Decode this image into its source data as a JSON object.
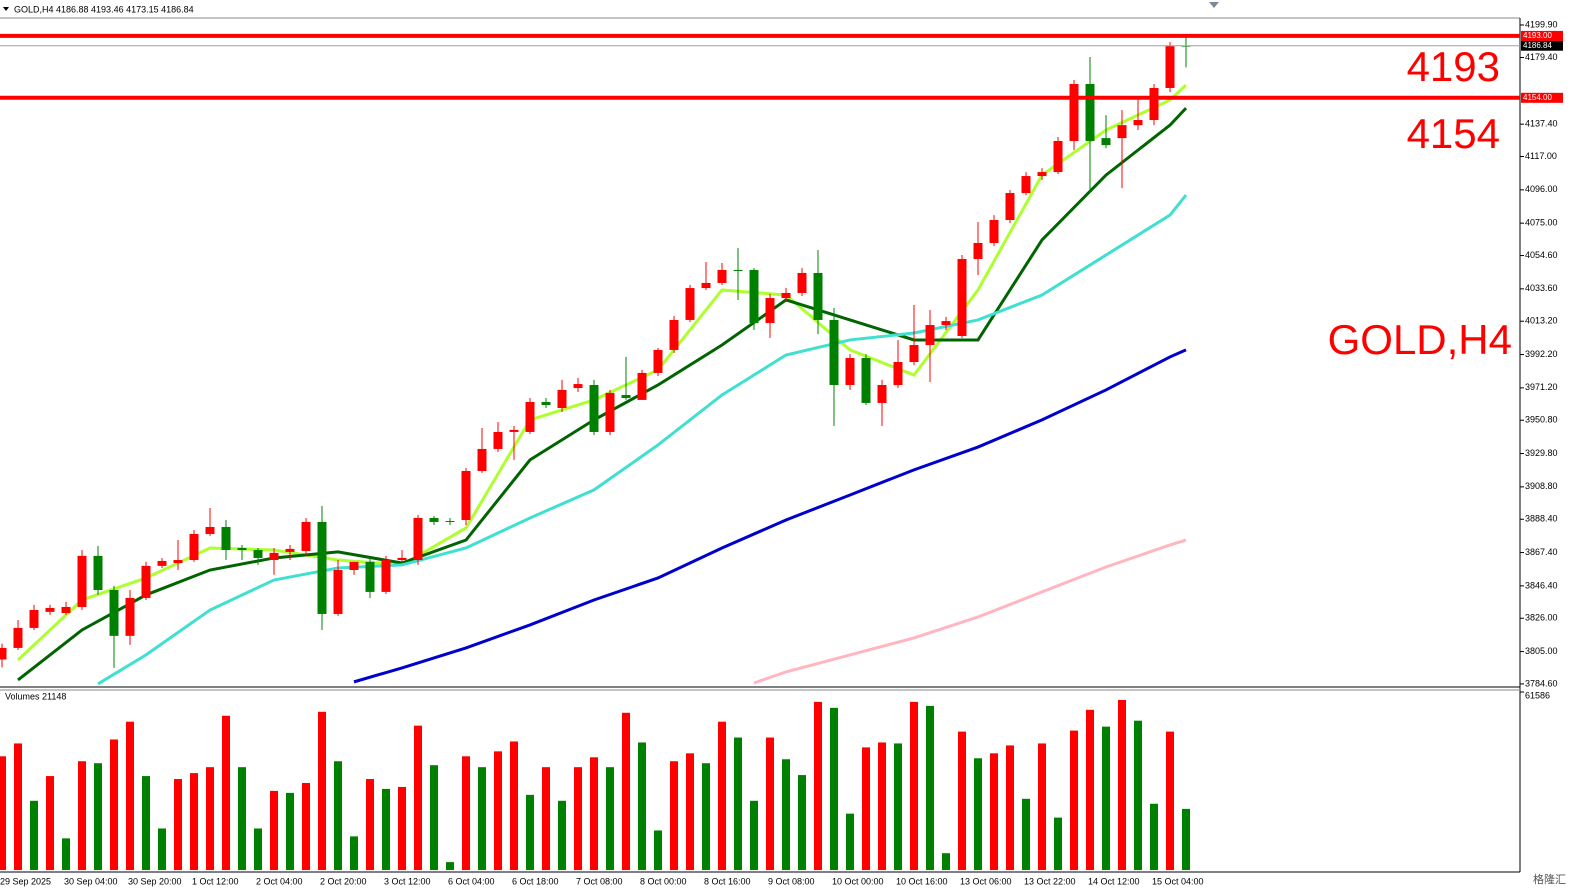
{
  "chart_data": [
    {
      "type": "candlestick",
      "title": "GOLD,H4  4186.88 4193.46 4173.15 4186.84",
      "categories": [
        "29 Sep 2025",
        null,
        null,
        null,
        "30 Sep 04:00",
        null,
        null,
        null,
        "30 Sep 20:00",
        null,
        null,
        null,
        "1 Oct 12:00",
        null,
        null,
        null,
        "2 Oct 04:00",
        null,
        null,
        null,
        "2 Oct 20:00",
        null,
        null,
        null,
        "3 Oct 12:00",
        null,
        null,
        null,
        "6 Oct 04:00",
        null,
        null,
        null,
        "6 Oct 18:00",
        null,
        null,
        null,
        "7 Oct 08:00",
        null,
        null,
        null,
        "8 Oct 00:00",
        null,
        null,
        null,
        "8 Oct 16:00",
        null,
        null,
        null,
        "9 Oct 08:00",
        null,
        null,
        null,
        "10 Oct 00:00",
        null,
        null,
        null,
        "10 Oct 16:00",
        null,
        null,
        null,
        "13 Oct 06:00",
        null,
        null,
        null,
        "13 Oct 22:00",
        null,
        null,
        null,
        "14 Oct 12:00",
        null,
        null,
        null,
        "15 Oct 04:00",
        null,
        null
      ],
      "open": [
        3800.0,
        3807.3,
        3819.9,
        3830.0,
        3829.3,
        3833.1,
        3865.3,
        3843.8,
        3814.9,
        3838.8,
        3859.0,
        3860.8,
        3862.7,
        3879.1,
        3883.5,
        3870.3,
        3869.0,
        3862.7,
        3867.8,
        3868.4,
        3886.7,
        3828.7,
        3856.4,
        3861.5,
        3842.6,
        3862.7,
        3862.7,
        3889.2,
        3887.3,
        3887.9,
        3918.8,
        3932.7,
        3943.4,
        3943.4,
        3962.3,
        3958.5,
        3971.1,
        3973.0,
        3943.4,
        3966.7,
        3963.6,
        3980.6,
        3995.1,
        4014.0,
        4034.1,
        4037.3,
        4045.5,
        4045.5,
        4012.1,
        4027.8,
        4031.0,
        4043.6,
        4014.0,
        3973.0,
        3990.0,
        3961.7,
        3973.0,
        3987.5,
        3998.2,
        4010.8,
        4003.9,
        4052.4,
        4062.5,
        4077.0,
        4094.0,
        4104.7,
        4107.2,
        4126.8,
        4162.7,
        4128.6,
        4128.6,
        4136.8,
        4140.0,
        4160.2,
        4186.88
      ],
      "high": [
        3810.0,
        3824.9,
        3834.4,
        3834.4,
        3836.3,
        3869.0,
        3871.6,
        3846.4,
        3843.8,
        3861.5,
        3864.0,
        3875.3,
        3881.6,
        3895.5,
        3887.9,
        3872.2,
        3870.3,
        3870.3,
        3872.2,
        3889.2,
        3896.8,
        3862.7,
        3861.5,
        3864.0,
        3865.3,
        3869.0,
        3891.1,
        3890.5,
        3889.2,
        3920.7,
        3945.9,
        3949.7,
        3947.2,
        3964.8,
        3964.8,
        3976.2,
        3977.4,
        3976.2,
        3969.9,
        3990.7,
        3982.5,
        3996.3,
        4016.5,
        4036.0,
        4050.5,
        4049.9,
        4059.3,
        4046.7,
        4030.4,
        4034.1,
        4046.7,
        4058.1,
        4021.5,
        3992.5,
        3992.5,
        3976.2,
        4001.4,
        4023.4,
        4020.3,
        4015.9,
        4054.9,
        4075.7,
        4080.1,
        4095.9,
        4107.2,
        4109.7,
        4129.3,
        4165.2,
        4179.7,
        4143.1,
        4146.3,
        4153.9,
        4162.7,
        4189.1,
        4193.46
      ],
      "low": [
        3795.0,
        3806.0,
        3818.6,
        3828.1,
        3828.1,
        3831.2,
        3840.7,
        3794.7,
        3809.2,
        3837.5,
        3857.7,
        3856.4,
        3861.5,
        3877.9,
        3862.7,
        3862.7,
        3859.6,
        3853.3,
        3862.7,
        3865.9,
        3818.6,
        3827.5,
        3853.3,
        3838.8,
        3841.3,
        3861.5,
        3859.6,
        3884.8,
        3884.8,
        3884.8,
        3917.6,
        3930.8,
        3925.8,
        3942.1,
        3958.5,
        3956.0,
        3968.6,
        3941.5,
        3941.5,
        3963.6,
        3963.6,
        3978.7,
        3993.2,
        4012.7,
        4032.9,
        4036.0,
        4026.6,
        4007.7,
        4002.6,
        4025.3,
        4029.1,
        4005.1,
        3947.2,
        3969.9,
        3960.4,
        3947.2,
        3971.1,
        3985.6,
        3974.9,
        4007.7,
        4002.6,
        4042.3,
        4060.6,
        4075.1,
        4092.7,
        4102.2,
        4106.0,
        4121.1,
        4094.0,
        4122.3,
        4097.1,
        4133.7,
        4136.8,
        4157.6,
        4173.15
      ],
      "close": [
        3807.3,
        3819.9,
        3831.2,
        3832.5,
        3833.1,
        3865.3,
        3843.8,
        3814.9,
        3838.8,
        3859.0,
        3862.1,
        3862.7,
        3879.1,
        3883.5,
        3869.0,
        3869.0,
        3864.0,
        3867.2,
        3869.7,
        3886.7,
        3828.7,
        3856.4,
        3861.5,
        3842.6,
        3862.7,
        3864.0,
        3889.2,
        3886.7,
        3886.7,
        3918.8,
        3932.7,
        3943.4,
        3944.7,
        3962.3,
        3960.4,
        3969.9,
        3973.6,
        3943.4,
        3968.0,
        3964.8,
        3980.6,
        3995.1,
        4014.0,
        4034.1,
        4037.3,
        4045.5,
        4045.5,
        4012.1,
        4027.8,
        4031.0,
        4043.6,
        4014.0,
        3973.0,
        3990.0,
        3961.7,
        3973.0,
        3987.5,
        3998.2,
        4010.8,
        4013.3,
        4052.4,
        4062.5,
        4077.0,
        4094.0,
        4104.7,
        4107.2,
        4126.8,
        4162.7,
        4126.8,
        4124.2,
        4136.8,
        4140.0,
        4160.2,
        4186.6,
        4186.84
      ],
      "up_color": "#ff0000",
      "down_color": "#008000",
      "series": [
        {
          "color": "#adff2f",
          "x": [
            1,
            5,
            9,
            13,
            17,
            21,
            25,
            29,
            33,
            37,
            41,
            45,
            49,
            53,
            57,
            61,
            65,
            69,
            73,
            74
          ],
          "values": [
            3799.7,
            3837.5,
            3851.4,
            3870.3,
            3869.0,
            3862.7,
            3859.6,
            3882.9,
            3951.0,
            3963.6,
            3982.5,
            4032.9,
            4029.7,
            3995.1,
            3979.3,
            4032.9,
            4105.3,
            4133.7,
            4152.6,
            4162.0
          ]
        },
        {
          "color": "#006400",
          "x": [
            1,
            5,
            9,
            13,
            17,
            21,
            25,
            29,
            33,
            37,
            41,
            45,
            49,
            53,
            57,
            61,
            65,
            69,
            73,
            74
          ],
          "values": [
            3787.1,
            3818.6,
            3840.7,
            3856.4,
            3864.0,
            3867.8,
            3860.8,
            3875.3,
            3925.8,
            3951.0,
            3973.0,
            3998.2,
            4026.6,
            4014.0,
            4001.4,
            4001.4,
            4064.4,
            4105.3,
            4136.8,
            4147.5
          ]
        },
        {
          "color": "#40e0d0",
          "x": [
            6,
            9,
            13,
            17,
            21,
            25,
            29,
            33,
            37,
            41,
            45,
            49,
            53,
            57,
            61,
            65,
            69,
            73,
            74
          ],
          "values": [
            3784.6,
            3802.9,
            3831.2,
            3850.1,
            3857.7,
            3859.6,
            3870.3,
            3889.2,
            3906.9,
            3935.2,
            3966.7,
            3991.9,
            4001.4,
            4005.8,
            4014.0,
            4029.7,
            4054.9,
            4080.1,
            4092.7
          ]
        },
        {
          "color": "#0000cd",
          "x": [
            22,
            25,
            29,
            33,
            37,
            41,
            45,
            49,
            53,
            57,
            61,
            65,
            69,
            73,
            74
          ],
          "values": [
            3785.9,
            3794.7,
            3807.3,
            3821.8,
            3837.5,
            3851.4,
            3870.3,
            3887.9,
            3903.7,
            3919.5,
            3933.9,
            3951.0,
            3969.9,
            3990.7,
            3995.1
          ]
        },
        {
          "color": "#ffb6c1",
          "x": [
            47,
            49,
            53,
            57,
            61,
            65,
            69,
            73,
            74
          ],
          "values": [
            3785.2,
            3792.2,
            3802.9,
            3813.6,
            3826.8,
            3842.6,
            3858.3,
            3872.2,
            3875.3
          ]
        }
      ],
      "hlines": [
        {
          "value": 4193.0,
          "label": "4193.00",
          "color": "#ff0000"
        },
        {
          "value": 4154.0,
          "label": "4154.00",
          "color": "#ff0000"
        }
      ],
      "current": {
        "value": 4186.84,
        "label": "4186.84",
        "color": "#000000"
      },
      "annotations": [
        "4193",
        "4154",
        "GOLD,H4"
      ],
      "ylim": [
        3783.3,
        4204.3
      ],
      "yticks": [
        {
          "value": 4199.9,
          "label": "4199.90"
        },
        {
          "value": 4179.4,
          "label": "4179.40"
        },
        {
          "value": 4137.4,
          "label": "4137.40"
        },
        {
          "value": 4117.0,
          "label": "4117.00"
        },
        {
          "value": 4096.0,
          "label": "4096.00"
        },
        {
          "value": 4075.0,
          "label": "4075.00"
        },
        {
          "value": 4054.6,
          "label": "4054.60"
        },
        {
          "value": 4033.6,
          "label": "4033.60"
        },
        {
          "value": 4013.2,
          "label": "4013.20"
        },
        {
          "value": 3992.2,
          "label": "3992.20"
        },
        {
          "value": 3971.2,
          "label": "3971.20"
        },
        {
          "value": 3950.8,
          "label": "3950.80"
        },
        {
          "value": 3929.8,
          "label": "3929.80"
        },
        {
          "value": 3908.8,
          "label": "3908.80"
        },
        {
          "value": 3888.4,
          "label": "3888.40"
        },
        {
          "value": 3867.4,
          "label": "3867.40"
        },
        {
          "value": 3846.4,
          "label": "3846.40"
        },
        {
          "value": 3826.0,
          "label": "3826.00"
        },
        {
          "value": 3805.0,
          "label": "3805.00"
        },
        {
          "value": 3784.6,
          "label": "3784.60"
        }
      ]
    },
    {
      "type": "bar",
      "title": "Volumes 21148",
      "values": [
        39342,
        43789,
        23947,
        32500,
        10947,
        37631,
        36947,
        45157,
        51315,
        32500,
        14368,
        31473,
        33526,
        35578,
        53368,
        35578,
        14368,
        27368,
        26684,
        30105,
        54736,
        37631,
        11631,
        31473,
        28052,
        28736,
        49947,
        36263,
        2737,
        39342,
        35578,
        41052,
        44473,
        26000,
        35578,
        23947,
        35578,
        38999,
        35578,
        54394,
        44131,
        13684,
        37631,
        40368,
        36947,
        51315,
        45841,
        23947,
        45841,
        38315,
        32842,
        58157,
        56104,
        19500,
        42420,
        44131,
        43789,
        58157,
        56789,
        5816,
        47894,
        38657,
        40368,
        43105,
        24631,
        43789,
        18131,
        48236,
        55420,
        49605,
        58841,
        51657,
        22921,
        47894,
        21148
      ],
      "up_color": "#ff0000",
      "down_color": "#008000",
      "ylim": [
        0,
        61586
      ],
      "yticks": [
        61586
      ]
    }
  ],
  "watermark": "格隆汇"
}
